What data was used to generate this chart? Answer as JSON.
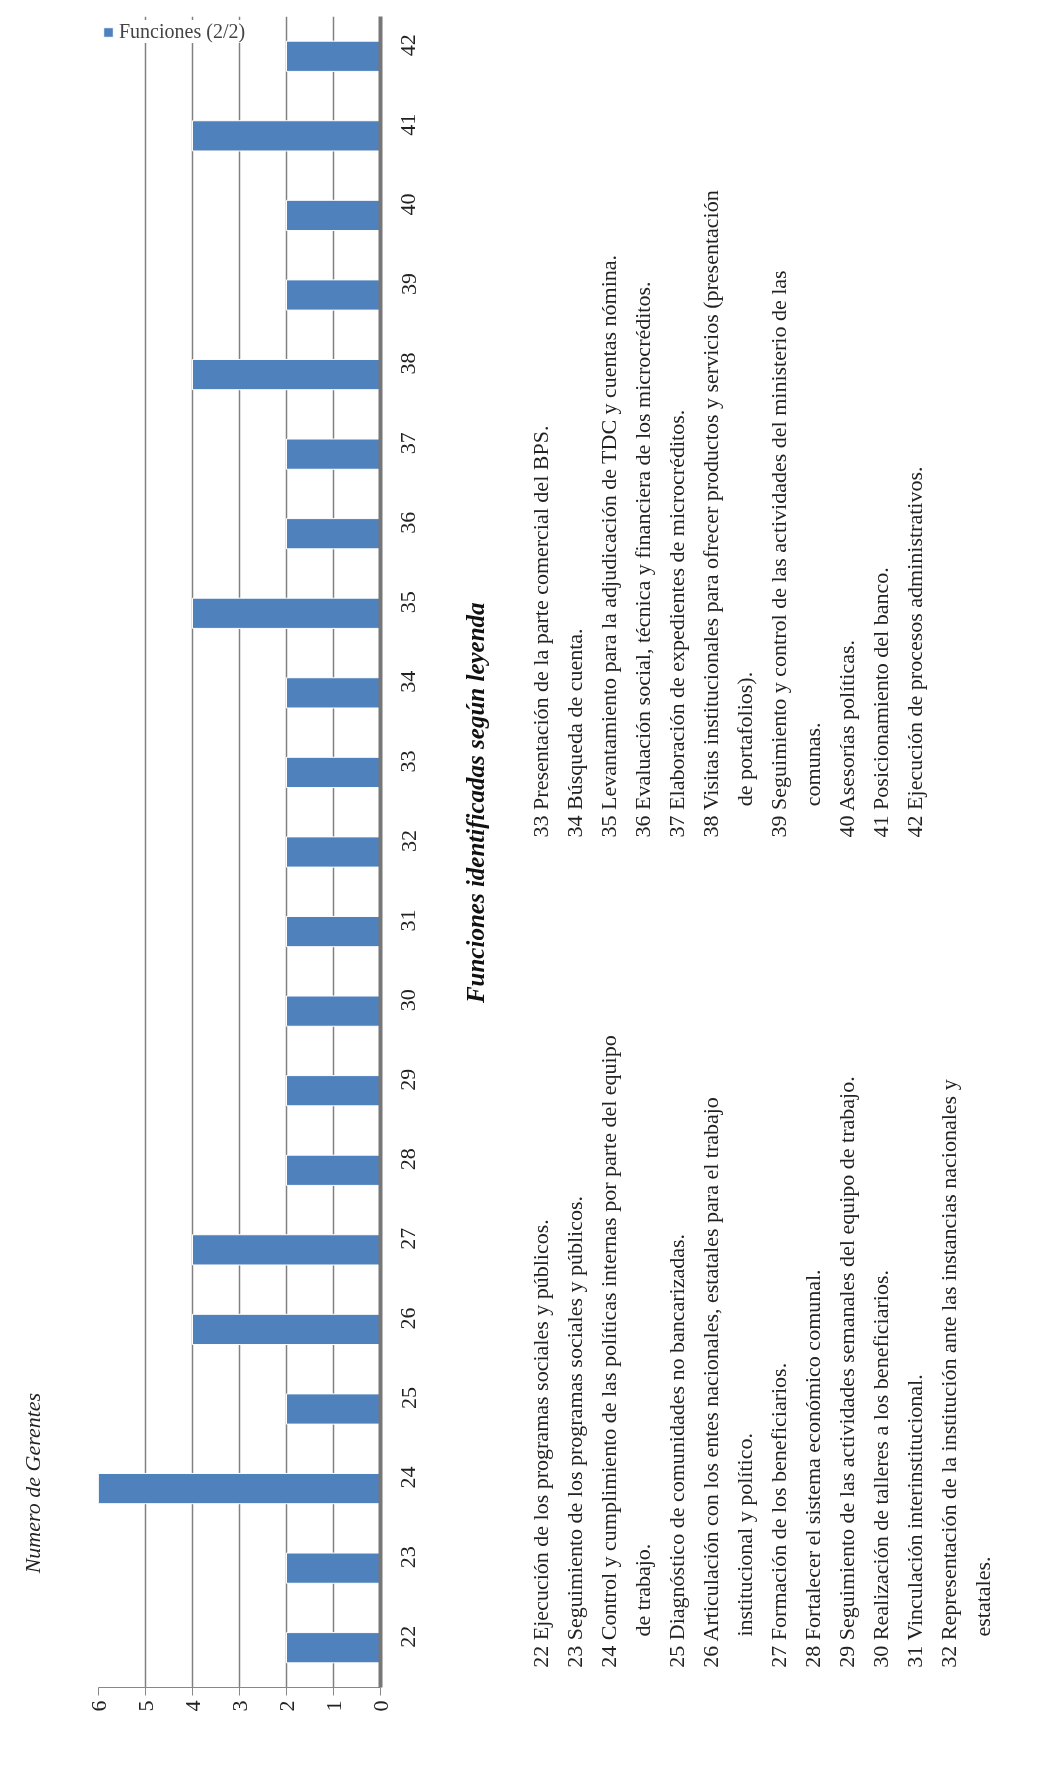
{
  "chart_data": {
    "type": "bar",
    "orientation": "horizontal",
    "ylabel": "Funciones identificadas  según leyenda",
    "categories": [
      "42",
      "41",
      "40",
      "39",
      "38",
      "37",
      "36",
      "35",
      "34",
      "33",
      "32",
      "31",
      "30",
      "29",
      "28",
      "27",
      "26",
      "25",
      "24",
      "23",
      "22"
    ],
    "series": [
      {
        "name": "Funciones (2/2)",
        "color": "#4f81bd",
        "values": [
          2,
          4,
          2,
          2,
          4,
          2,
          2,
          4,
          2,
          2,
          2,
          2,
          2,
          2,
          2,
          4,
          4,
          2,
          6,
          2,
          2
        ]
      }
    ],
    "xlim": [
      6,
      0
    ],
    "xticks": [
      0,
      1,
      2,
      3,
      4,
      5,
      6
    ],
    "grid": "x",
    "legend": "top left",
    "annotations": [
      "Numero de Gerentes",
      "22 Ejecución de los programas sociales y públicos.",
      "23 Seguimiento de los programas sociales y públicos.",
      "24 Control y cumplimiento de las políticas internas por parte del equipo\nde trabajo.",
      "25 Diagnóstico de comunidades no bancarizadas.",
      "26 Articulación con los entes nacionales, estatales para el trabajo\ninstitucional y político.",
      "27 Formación de los beneficiarios.",
      "28 Fortalecer el sistema económico comunal.",
      "29 Seguimiento de las actividades semanales del equipo de trabajo.",
      "30 Realización de talleres a los beneficiarios.",
      "31 Vinculación interinstitucional.",
      "32 Representación de la institución ante las instancias nacionales y\nestatales.",
      "33 Presentación de la parte comercial del BPS.",
      "34 Búsqueda de cuenta.",
      "35 Levantamiento para la adjudicación de TDC y cuentas nómina.",
      "36 Evaluación social, técnica y financiera de los microcréditos.",
      "37 Elaboración de expedientes de microcréditos.",
      "38 Visitas institucionales para ofrecer productos y servicios (presentación\nde portafolios).",
      "39 Seguimiento y control de las actividades del ministerio de las\ncomunas.",
      "40 Asesorías políticas.",
      "41 Posicionamiento del banco.",
      "42 Ejecución de procesos administrativos."
    ]
  }
}
